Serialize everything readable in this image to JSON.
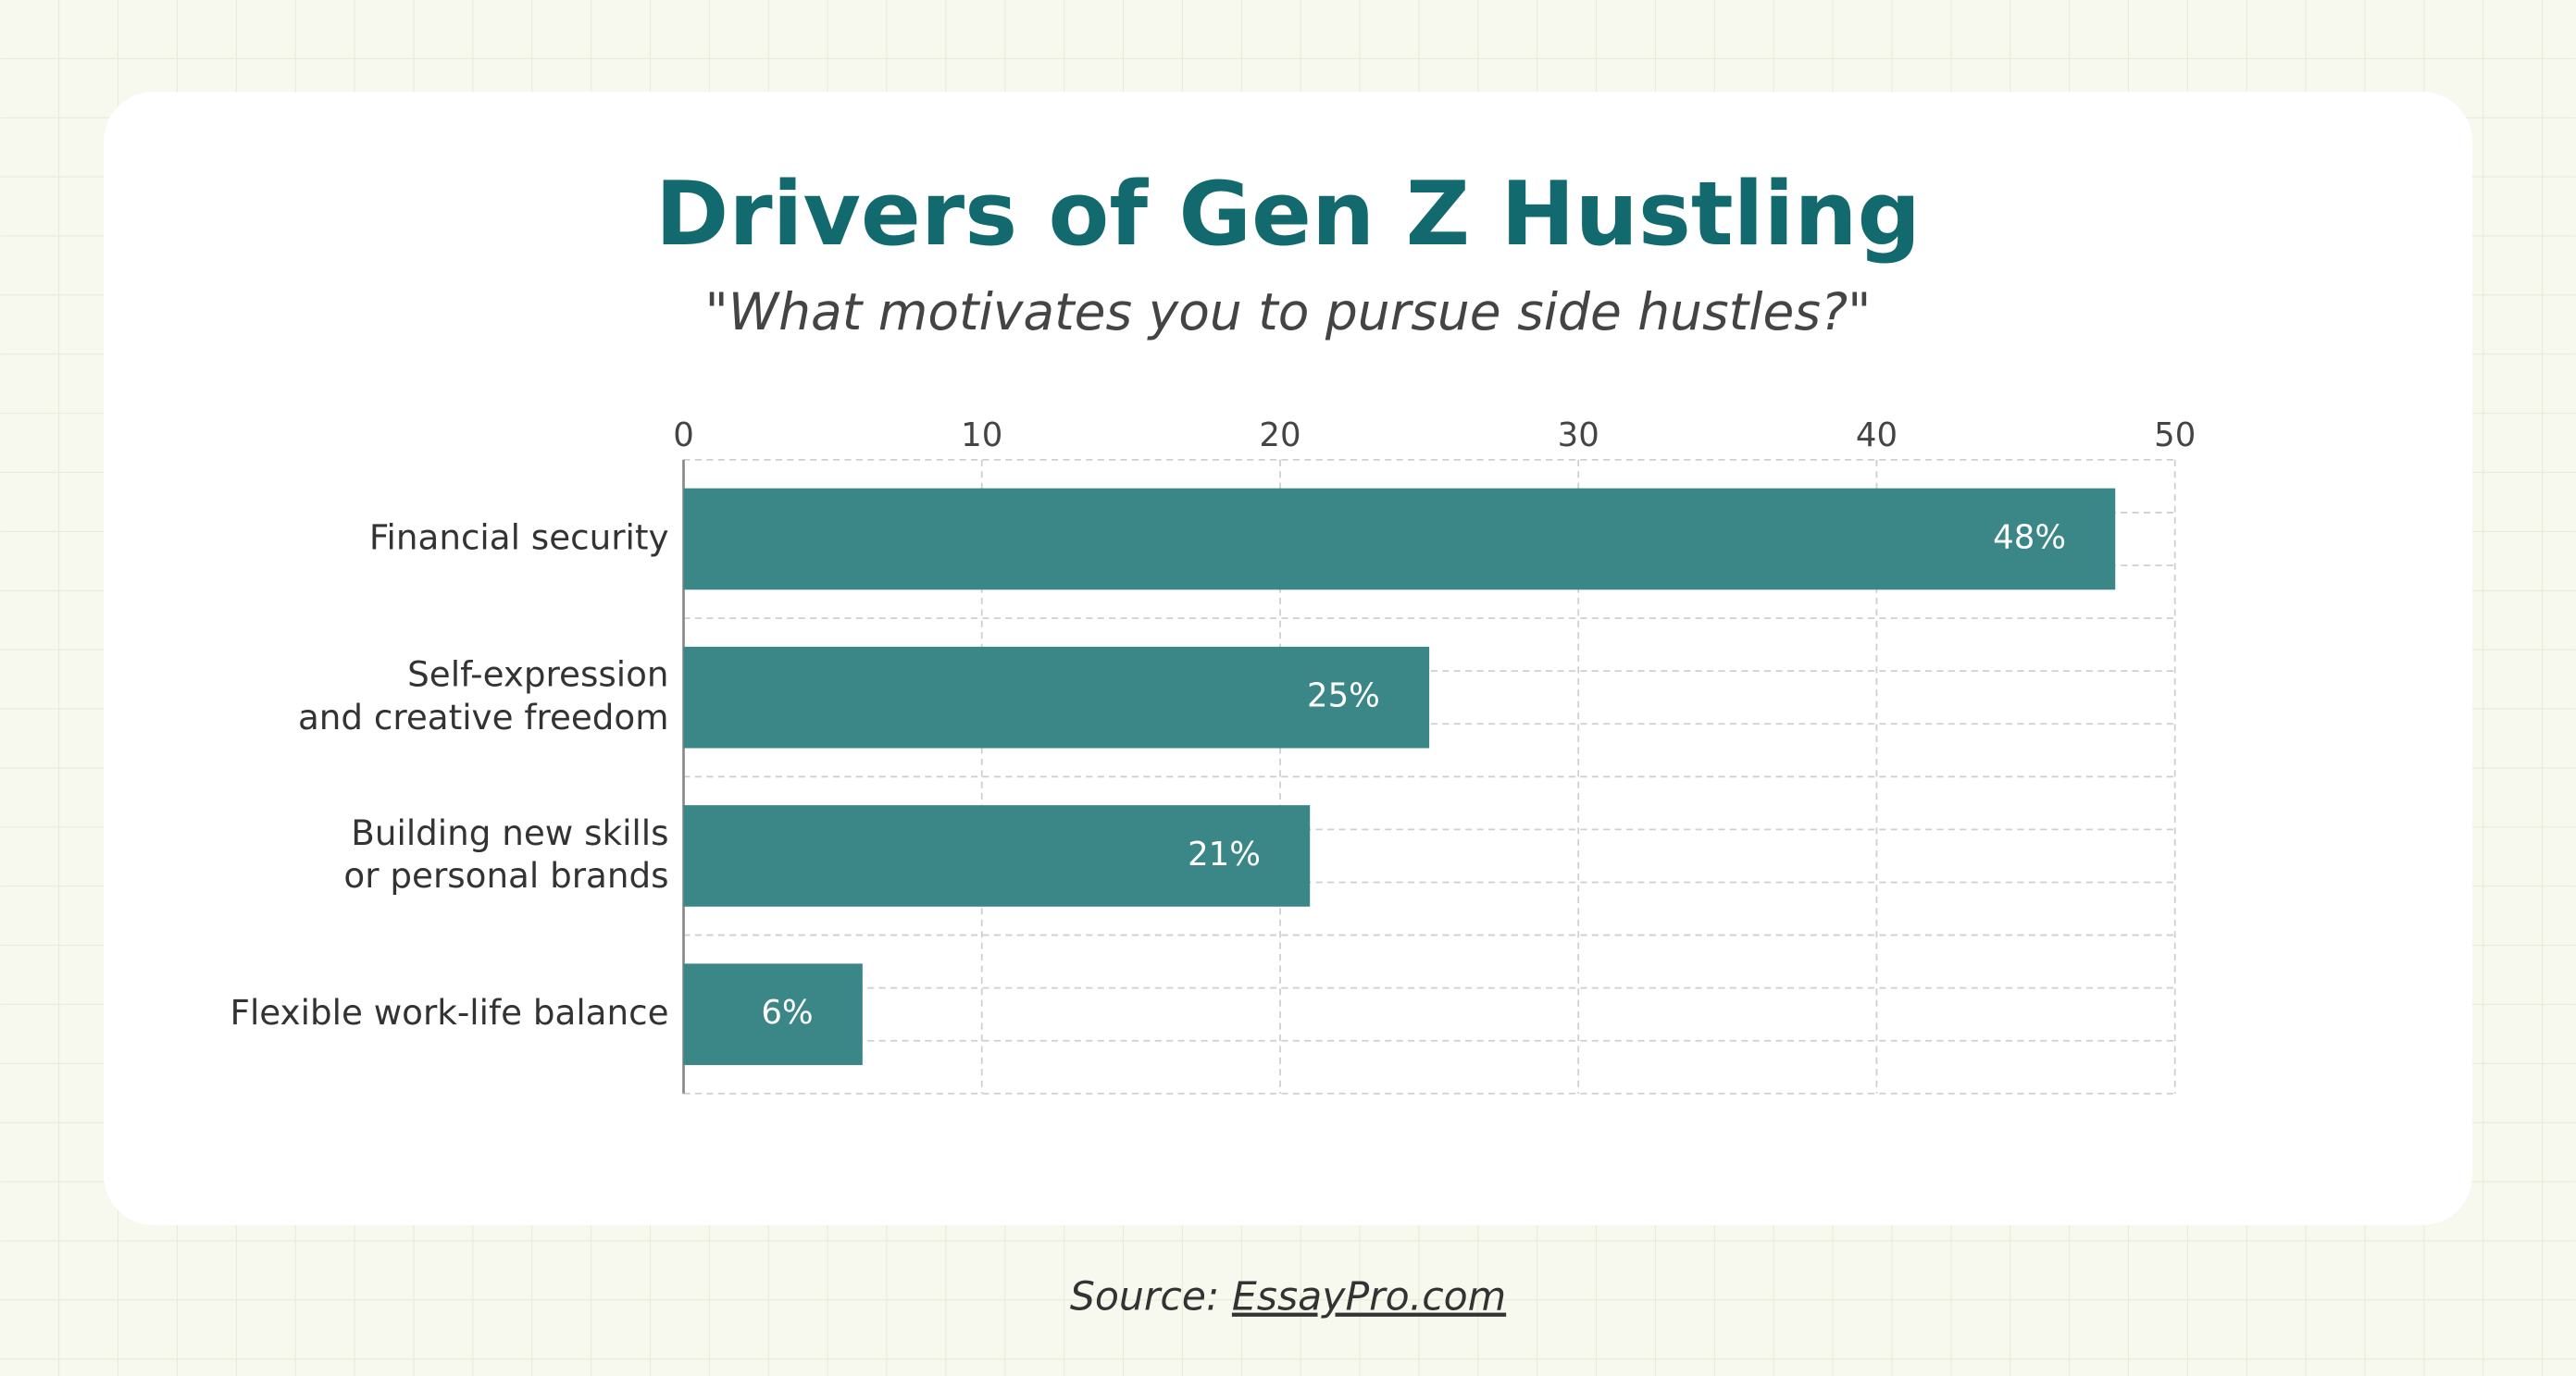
{
  "chart_data": {
    "type": "bar",
    "orientation": "horizontal",
    "title": "Drivers of Gen Z Hustling",
    "subtitle": "\"What motivates you to pursue side hustles?\"",
    "categories": [
      "Financial security",
      "Self-expression\nand creative freedom",
      "Building new skills\nor personal brands",
      "Flexible work-life balance"
    ],
    "values": [
      48,
      25,
      21,
      6
    ],
    "value_labels": [
      "48%",
      "25%",
      "21%",
      "6%"
    ],
    "color": "#3b8788",
    "xlim": [
      0,
      50
    ],
    "xticks": [
      0,
      10,
      20,
      30,
      40,
      50
    ],
    "grid": true,
    "source_label": "Source:",
    "source_link": "EssayPro.com"
  }
}
